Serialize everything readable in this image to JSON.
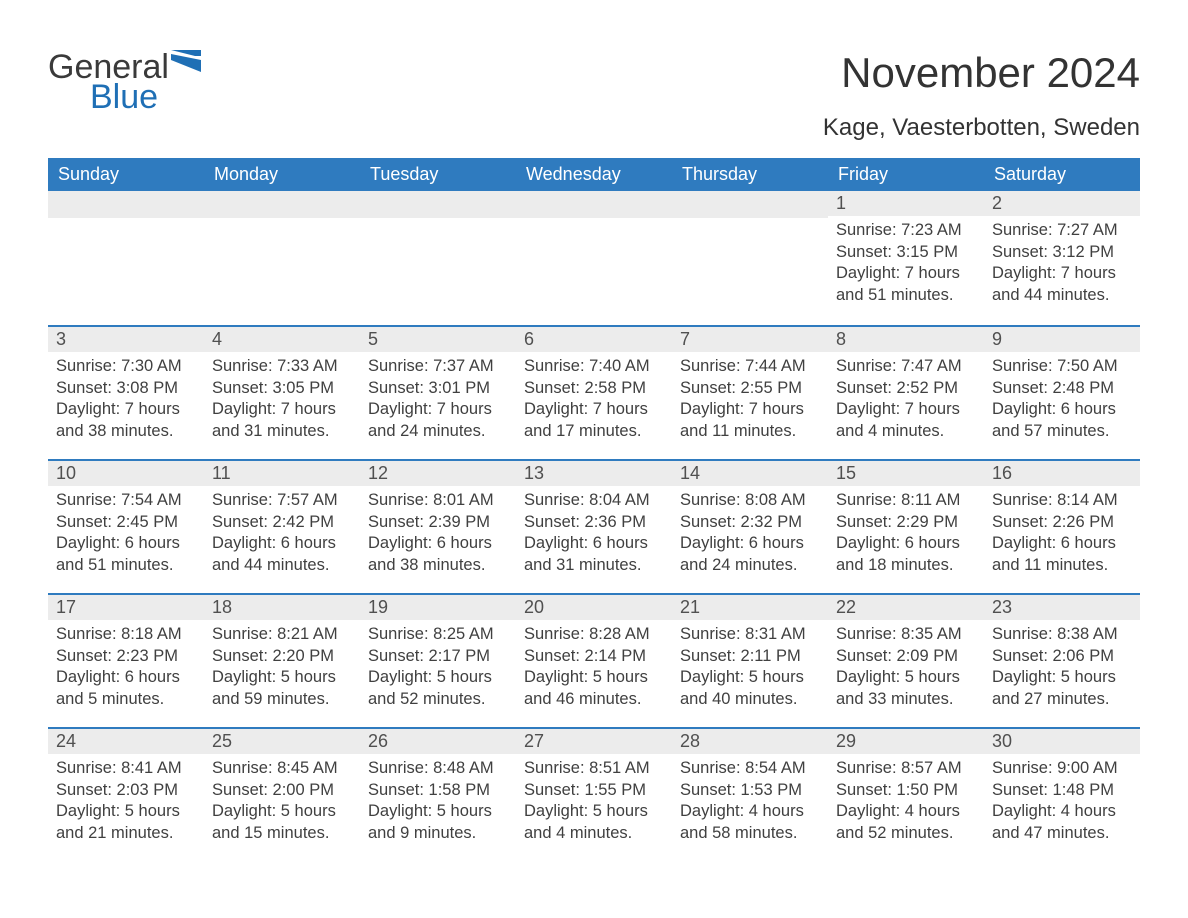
{
  "logo": {
    "word1": "General",
    "word2": "Blue",
    "flag_color": "#1f6fb5"
  },
  "title": "November 2024",
  "location": "Kage, Vaesterbotten, Sweden",
  "colors": {
    "header_bg": "#2f7bbf",
    "header_text": "#ffffff",
    "daynum_bg": "#ececec",
    "daynum_border": "#2f7bbf",
    "body_text": "#404040",
    "page_bg": "#ffffff"
  },
  "day_headers": [
    "Sunday",
    "Monday",
    "Tuesday",
    "Wednesday",
    "Thursday",
    "Friday",
    "Saturday"
  ],
  "weeks": [
    [
      null,
      null,
      null,
      null,
      null,
      {
        "n": "1",
        "sunrise": "Sunrise: 7:23 AM",
        "sunset": "Sunset: 3:15 PM",
        "dl1": "Daylight: 7 hours",
        "dl2": "and 51 minutes."
      },
      {
        "n": "2",
        "sunrise": "Sunrise: 7:27 AM",
        "sunset": "Sunset: 3:12 PM",
        "dl1": "Daylight: 7 hours",
        "dl2": "and 44 minutes."
      }
    ],
    [
      {
        "n": "3",
        "sunrise": "Sunrise: 7:30 AM",
        "sunset": "Sunset: 3:08 PM",
        "dl1": "Daylight: 7 hours",
        "dl2": "and 38 minutes."
      },
      {
        "n": "4",
        "sunrise": "Sunrise: 7:33 AM",
        "sunset": "Sunset: 3:05 PM",
        "dl1": "Daylight: 7 hours",
        "dl2": "and 31 minutes."
      },
      {
        "n": "5",
        "sunrise": "Sunrise: 7:37 AM",
        "sunset": "Sunset: 3:01 PM",
        "dl1": "Daylight: 7 hours",
        "dl2": "and 24 minutes."
      },
      {
        "n": "6",
        "sunrise": "Sunrise: 7:40 AM",
        "sunset": "Sunset: 2:58 PM",
        "dl1": "Daylight: 7 hours",
        "dl2": "and 17 minutes."
      },
      {
        "n": "7",
        "sunrise": "Sunrise: 7:44 AM",
        "sunset": "Sunset: 2:55 PM",
        "dl1": "Daylight: 7 hours",
        "dl2": "and 11 minutes."
      },
      {
        "n": "8",
        "sunrise": "Sunrise: 7:47 AM",
        "sunset": "Sunset: 2:52 PM",
        "dl1": "Daylight: 7 hours",
        "dl2": "and 4 minutes."
      },
      {
        "n": "9",
        "sunrise": "Sunrise: 7:50 AM",
        "sunset": "Sunset: 2:48 PM",
        "dl1": "Daylight: 6 hours",
        "dl2": "and 57 minutes."
      }
    ],
    [
      {
        "n": "10",
        "sunrise": "Sunrise: 7:54 AM",
        "sunset": "Sunset: 2:45 PM",
        "dl1": "Daylight: 6 hours",
        "dl2": "and 51 minutes."
      },
      {
        "n": "11",
        "sunrise": "Sunrise: 7:57 AM",
        "sunset": "Sunset: 2:42 PM",
        "dl1": "Daylight: 6 hours",
        "dl2": "and 44 minutes."
      },
      {
        "n": "12",
        "sunrise": "Sunrise: 8:01 AM",
        "sunset": "Sunset: 2:39 PM",
        "dl1": "Daylight: 6 hours",
        "dl2": "and 38 minutes."
      },
      {
        "n": "13",
        "sunrise": "Sunrise: 8:04 AM",
        "sunset": "Sunset: 2:36 PM",
        "dl1": "Daylight: 6 hours",
        "dl2": "and 31 minutes."
      },
      {
        "n": "14",
        "sunrise": "Sunrise: 8:08 AM",
        "sunset": "Sunset: 2:32 PM",
        "dl1": "Daylight: 6 hours",
        "dl2": "and 24 minutes."
      },
      {
        "n": "15",
        "sunrise": "Sunrise: 8:11 AM",
        "sunset": "Sunset: 2:29 PM",
        "dl1": "Daylight: 6 hours",
        "dl2": "and 18 minutes."
      },
      {
        "n": "16",
        "sunrise": "Sunrise: 8:14 AM",
        "sunset": "Sunset: 2:26 PM",
        "dl1": "Daylight: 6 hours",
        "dl2": "and 11 minutes."
      }
    ],
    [
      {
        "n": "17",
        "sunrise": "Sunrise: 8:18 AM",
        "sunset": "Sunset: 2:23 PM",
        "dl1": "Daylight: 6 hours",
        "dl2": "and 5 minutes."
      },
      {
        "n": "18",
        "sunrise": "Sunrise: 8:21 AM",
        "sunset": "Sunset: 2:20 PM",
        "dl1": "Daylight: 5 hours",
        "dl2": "and 59 minutes."
      },
      {
        "n": "19",
        "sunrise": "Sunrise: 8:25 AM",
        "sunset": "Sunset: 2:17 PM",
        "dl1": "Daylight: 5 hours",
        "dl2": "and 52 minutes."
      },
      {
        "n": "20",
        "sunrise": "Sunrise: 8:28 AM",
        "sunset": "Sunset: 2:14 PM",
        "dl1": "Daylight: 5 hours",
        "dl2": "and 46 minutes."
      },
      {
        "n": "21",
        "sunrise": "Sunrise: 8:31 AM",
        "sunset": "Sunset: 2:11 PM",
        "dl1": "Daylight: 5 hours",
        "dl2": "and 40 minutes."
      },
      {
        "n": "22",
        "sunrise": "Sunrise: 8:35 AM",
        "sunset": "Sunset: 2:09 PM",
        "dl1": "Daylight: 5 hours",
        "dl2": "and 33 minutes."
      },
      {
        "n": "23",
        "sunrise": "Sunrise: 8:38 AM",
        "sunset": "Sunset: 2:06 PM",
        "dl1": "Daylight: 5 hours",
        "dl2": "and 27 minutes."
      }
    ],
    [
      {
        "n": "24",
        "sunrise": "Sunrise: 8:41 AM",
        "sunset": "Sunset: 2:03 PM",
        "dl1": "Daylight: 5 hours",
        "dl2": "and 21 minutes."
      },
      {
        "n": "25",
        "sunrise": "Sunrise: 8:45 AM",
        "sunset": "Sunset: 2:00 PM",
        "dl1": "Daylight: 5 hours",
        "dl2": "and 15 minutes."
      },
      {
        "n": "26",
        "sunrise": "Sunrise: 8:48 AM",
        "sunset": "Sunset: 1:58 PM",
        "dl1": "Daylight: 5 hours",
        "dl2": "and 9 minutes."
      },
      {
        "n": "27",
        "sunrise": "Sunrise: 8:51 AM",
        "sunset": "Sunset: 1:55 PM",
        "dl1": "Daylight: 5 hours",
        "dl2": "and 4 minutes."
      },
      {
        "n": "28",
        "sunrise": "Sunrise: 8:54 AM",
        "sunset": "Sunset: 1:53 PM",
        "dl1": "Daylight: 4 hours",
        "dl2": "and 58 minutes."
      },
      {
        "n": "29",
        "sunrise": "Sunrise: 8:57 AM",
        "sunset": "Sunset: 1:50 PM",
        "dl1": "Daylight: 4 hours",
        "dl2": "and 52 minutes."
      },
      {
        "n": "30",
        "sunrise": "Sunrise: 9:00 AM",
        "sunset": "Sunset: 1:48 PM",
        "dl1": "Daylight: 4 hours",
        "dl2": "and 47 minutes."
      }
    ]
  ]
}
